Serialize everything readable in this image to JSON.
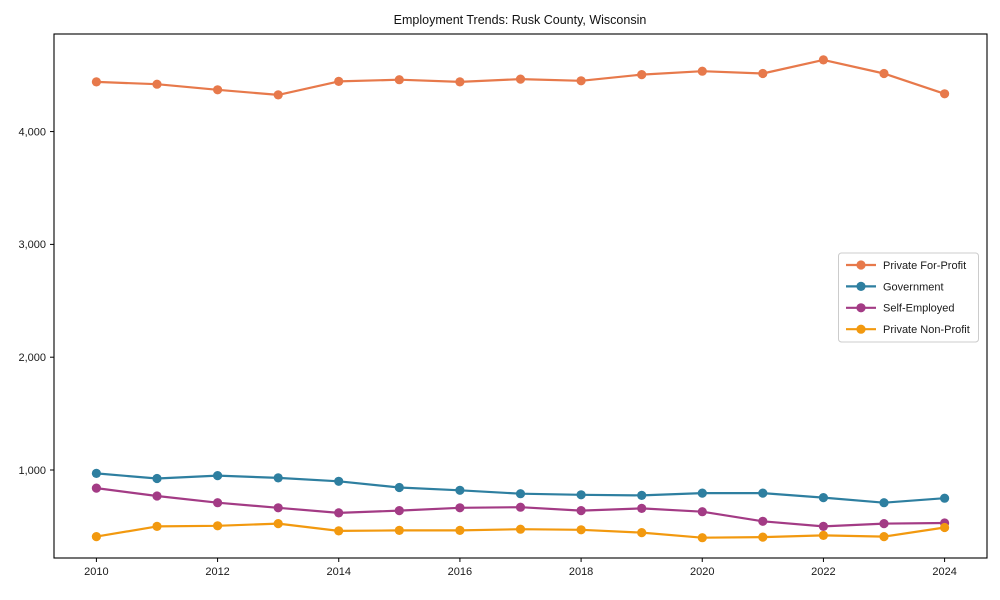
{
  "figure": {
    "background": "#ffffff",
    "axis_color": "#000000",
    "text_color": "#1a1a1a"
  },
  "chart_data": {
    "type": "line",
    "title": "Employment Trends: Rusk County, Wisconsin",
    "xlabel": "",
    "ylabel": "",
    "grid": false,
    "legend_position": "center right",
    "x": [
      2010,
      2011,
      2012,
      2013,
      2014,
      2015,
      2016,
      2017,
      2018,
      2019,
      2020,
      2021,
      2022,
      2023,
      2024
    ],
    "series": [
      {
        "name": "Private For-Profit",
        "color": "#e7794b",
        "values": [
          4440,
          4420,
          4370,
          4325,
          4445,
          4460,
          4440,
          4465,
          4450,
          4505,
          4535,
          4515,
          4635,
          4515,
          4335
        ]
      },
      {
        "name": "Government",
        "color": "#2e7fa0",
        "values": [
          970,
          925,
          950,
          930,
          900,
          845,
          820,
          790,
          780,
          775,
          795,
          795,
          755,
          710,
          750
        ]
      },
      {
        "name": "Self-Employed",
        "color": "#a33b85",
        "values": [
          840,
          770,
          710,
          665,
          620,
          640,
          665,
          670,
          640,
          660,
          630,
          545,
          500,
          525,
          530
        ]
      },
      {
        "name": "Private Non-Profit",
        "color": "#f2990f",
        "values": [
          410,
          500,
          505,
          525,
          460,
          465,
          465,
          475,
          470,
          445,
          400,
          405,
          420,
          410,
          490
        ]
      }
    ],
    "xlim": [
      2009.3,
      2024.7
    ],
    "ylim": [
      220,
      4865
    ],
    "xticks": {
      "values": [
        2010,
        2012,
        2014,
        2016,
        2018,
        2020,
        2022,
        2024
      ],
      "labels": [
        "2010",
        "2012",
        "2014",
        "2016",
        "2018",
        "2020",
        "2022",
        "2024"
      ]
    },
    "yticks": {
      "values": [
        1000,
        2000,
        3000,
        4000
      ],
      "labels": [
        "1,000",
        "2,000",
        "3,000",
        "4,000"
      ]
    }
  }
}
